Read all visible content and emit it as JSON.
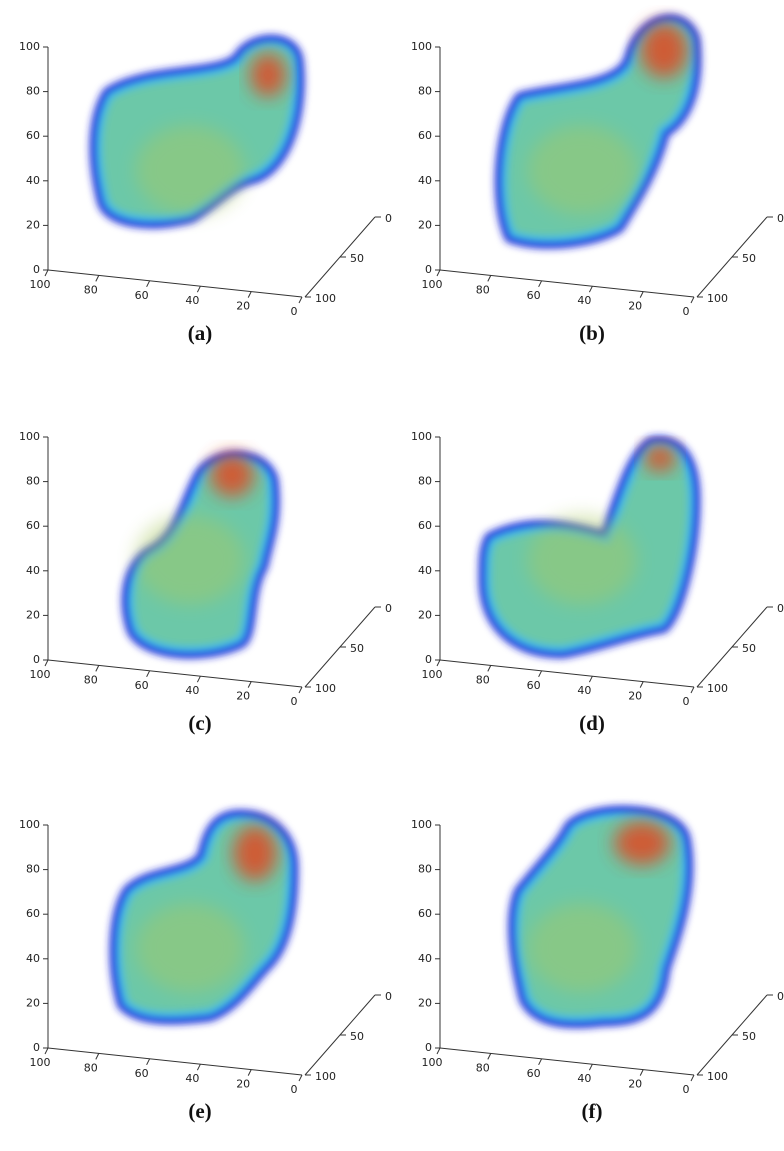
{
  "axes": {
    "z_ticks": [
      0,
      20,
      40,
      60,
      80,
      100
    ],
    "x_ticks": [
      100,
      80,
      60,
      40,
      20,
      0
    ],
    "y_ticks": [
      0,
      50,
      100
    ]
  },
  "panels": [
    {
      "label": "(a)"
    },
    {
      "label": "(b)"
    },
    {
      "label": "(c)"
    },
    {
      "label": "(d)"
    },
    {
      "label": "(e)"
    },
    {
      "label": "(f)"
    }
  ]
}
